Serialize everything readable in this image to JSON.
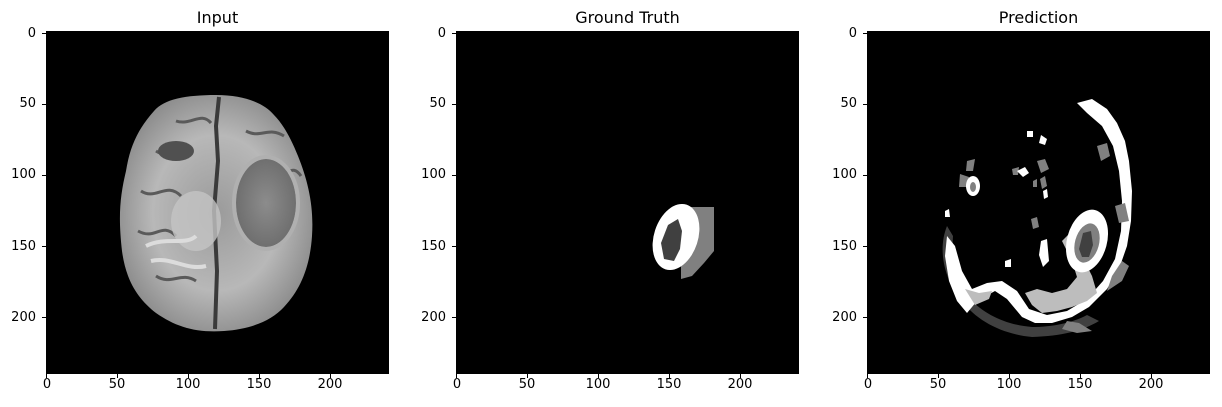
{
  "panels": [
    {
      "id": "input",
      "title": "Input",
      "xticks": [
        "0",
        "50",
        "100",
        "150",
        "200"
      ],
      "yticks": [
        "0",
        "50",
        "100",
        "150",
        "200"
      ]
    },
    {
      "id": "ground-truth",
      "title": "Ground Truth",
      "xticks": [
        "0",
        "50",
        "100",
        "150",
        "200"
      ],
      "yticks": [
        "0",
        "50",
        "100",
        "150",
        "200"
      ]
    },
    {
      "id": "prediction",
      "title": "Prediction",
      "xticks": [
        "0",
        "50",
        "100",
        "150",
        "200"
      ],
      "yticks": [
        "0",
        "50",
        "100",
        "150",
        "200"
      ]
    }
  ],
  "colors": {
    "background": "#000000",
    "white": "#ffffff",
    "light_gray": "#bdbdbd",
    "mid_gray": "#808080",
    "dark_gray": "#404040"
  }
}
